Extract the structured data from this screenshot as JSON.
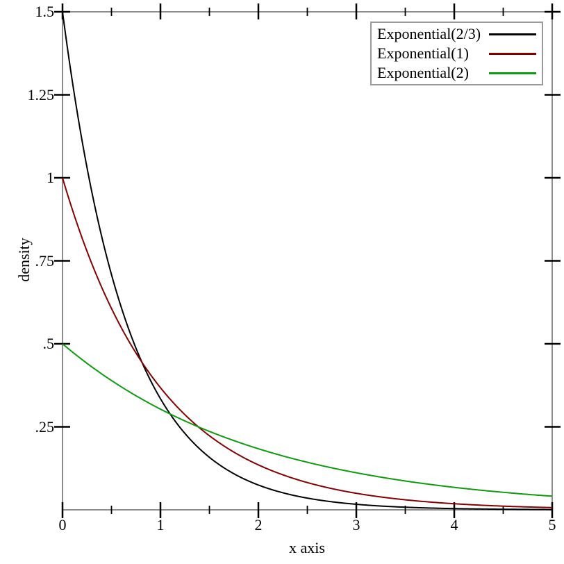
{
  "chart_data": {
    "type": "line",
    "xlabel": "x axis",
    "ylabel": "density",
    "xlim": [
      0,
      5
    ],
    "ylim": [
      0,
      1.5
    ],
    "grid": false,
    "legend_position": "top-right",
    "x_ticks": {
      "major_values": [
        0,
        1,
        2,
        3,
        4,
        5
      ],
      "major_labels": [
        "0",
        "1",
        "2",
        "3",
        "4",
        "5"
      ],
      "minor_values": [
        0.5,
        1.5,
        2.5,
        3.5,
        4.5
      ]
    },
    "y_ticks": {
      "major_values": [
        0.25,
        0.5,
        0.75,
        1,
        1.25,
        1.5
      ],
      "major_labels": [
        ".25",
        ".5",
        ".75",
        "1",
        "1.25",
        "1.5"
      ]
    },
    "series": [
      {
        "name": "Exponential(2/3)",
        "color": "#000000",
        "rate": 1.5,
        "x_samples": [
          0,
          0.5,
          1,
          1.5,
          2,
          2.5,
          3,
          3.5,
          4,
          4.5,
          5
        ],
        "y_samples": [
          1.5,
          0.709,
          0.335,
          0.158,
          0.075,
          0.035,
          0.017,
          0.008,
          0.004,
          0.002,
          0.001
        ]
      },
      {
        "name": "Exponential(1)",
        "color": "#850000",
        "rate": 1,
        "x_samples": [
          0,
          0.5,
          1,
          1.5,
          2,
          2.5,
          3,
          3.5,
          4,
          4.5,
          5
        ],
        "y_samples": [
          1,
          0.607,
          0.368,
          0.223,
          0.135,
          0.082,
          0.05,
          0.03,
          0.018,
          0.011,
          0.007
        ]
      },
      {
        "name": "Exponential(2)",
        "color": "#0f9b0f",
        "rate": 0.5,
        "x_samples": [
          0,
          0.5,
          1,
          1.5,
          2,
          2.5,
          3,
          3.5,
          4,
          4.5,
          5
        ],
        "y_samples": [
          0.5,
          0.389,
          0.303,
          0.236,
          0.184,
          0.143,
          0.112,
          0.087,
          0.068,
          0.053,
          0.041
        ]
      }
    ]
  },
  "style": {
    "background": "#ffffff",
    "frame_color": "#8c8c8c",
    "tick_color": "#000000",
    "legend_border_color": "#9a9a9a"
  }
}
